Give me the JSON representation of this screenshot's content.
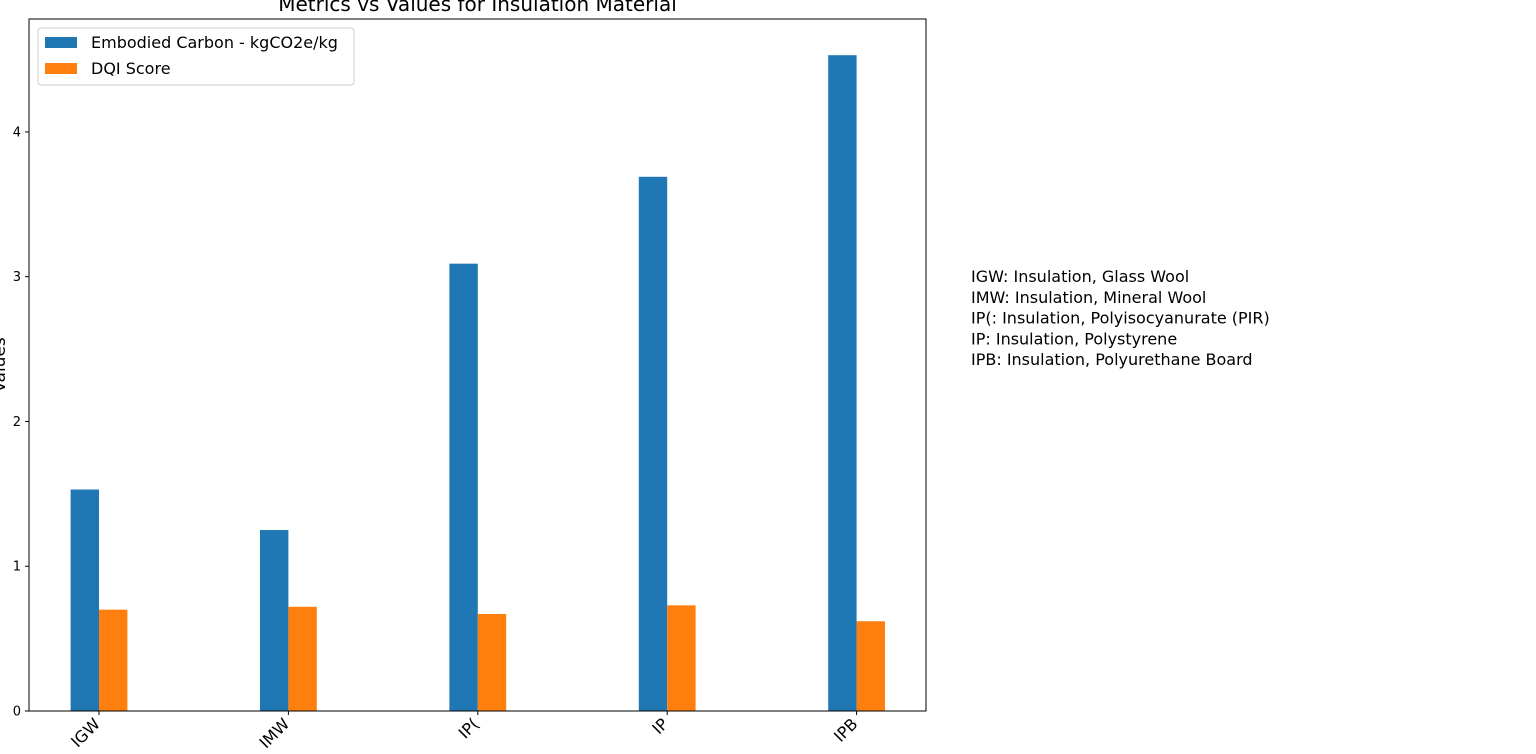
{
  "chart_data": {
    "type": "bar",
    "title": "Metrics vs Values for Insulation Material",
    "xlabel": "",
    "ylabel": "Values",
    "categories": [
      "IGW",
      "IMW",
      "IP(",
      "IP",
      "IPB"
    ],
    "series": [
      {
        "name": "Embodied Carbon - kgCO2e/kg",
        "values": [
          1.53,
          1.25,
          3.09,
          3.69,
          4.53
        ],
        "color": "#1f77b4"
      },
      {
        "name": "DQI Score",
        "values": [
          0.7,
          0.72,
          0.67,
          0.73,
          0.62
        ],
        "color": "#ff7f0e"
      }
    ],
    "ylim": [
      0,
      4.78
    ],
    "yticks": [
      "0",
      "1",
      "2",
      "3",
      "4"
    ],
    "grid": false,
    "legend_position": "upper left",
    "x_tick_rotation": 45,
    "abbreviations": [
      "IGW: Insulation, Glass Wool",
      "IMW: Insulation, Mineral Wool",
      "IP(: Insulation, Polyisocyanurate (PIR)",
      "IP: Insulation, Polystyrene",
      "IPB: Insulation, Polyurethane Board"
    ]
  }
}
